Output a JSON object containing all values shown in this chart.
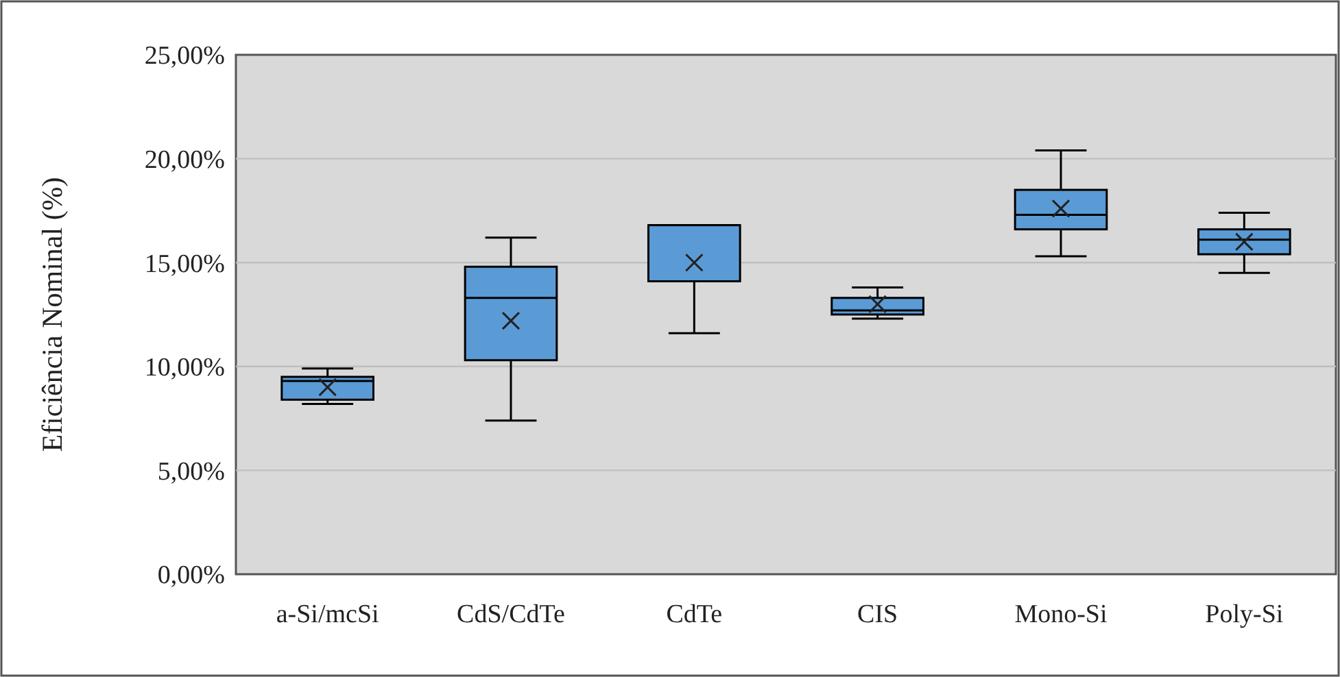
{
  "chart_data": {
    "type": "box",
    "ylabel": "Eficiência Nominal (%)",
    "categories": [
      "a-Si/mcSi",
      "CdS/CdTe",
      "CdTe",
      "CIS",
      "Mono-Si",
      "Poly-Si"
    ],
    "color": "#5b9bd5",
    "grid": "y",
    "ylim": [
      0,
      25
    ],
    "yticks": [
      {
        "value": 0,
        "label": "0,00%"
      },
      {
        "value": 5,
        "label": "5,00%"
      },
      {
        "value": 10,
        "label": "10,00%"
      },
      {
        "value": 15,
        "label": "15,00%"
      },
      {
        "value": 20,
        "label": "20,00%"
      },
      {
        "value": 25,
        "label": "25,00%"
      }
    ],
    "boxes": [
      {
        "low": 8.2,
        "q1": 8.4,
        "median": 9.3,
        "q3": 9.5,
        "high": 9.9,
        "mean": 9.0
      },
      {
        "low": 7.4,
        "q1": 10.3,
        "median": 13.3,
        "q3": 14.8,
        "high": 16.2,
        "mean": 12.2
      },
      {
        "low": 11.6,
        "q1": 14.1,
        "median": 16.8,
        "q3": 16.8,
        "high": 16.8,
        "mean": 15.0
      },
      {
        "low": 12.3,
        "q1": 12.5,
        "median": 12.7,
        "q3": 13.3,
        "high": 13.8,
        "mean": 13.0
      },
      {
        "low": 15.3,
        "q1": 16.6,
        "median": 17.3,
        "q3": 18.5,
        "high": 20.4,
        "mean": 17.6
      },
      {
        "low": 14.5,
        "q1": 15.4,
        "median": 16.1,
        "q3": 16.6,
        "high": 17.4,
        "mean": 16.0
      }
    ]
  }
}
